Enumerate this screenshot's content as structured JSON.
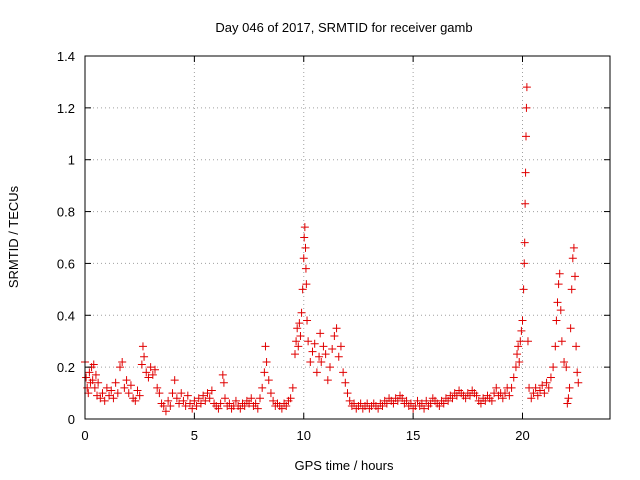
{
  "chart_data": {
    "type": "scatter",
    "title": "Day 046 of 2017, SRMTID for receiver gamb",
    "xlabel": "GPS time / hours",
    "ylabel": "SRMTID / TECUs",
    "xlim": [
      0,
      24
    ],
    "ylim": [
      0,
      1.4
    ],
    "xticks": [
      0,
      5,
      10,
      15,
      20
    ],
    "yticks": [
      0,
      0.2,
      0.4,
      0.6,
      0.8,
      1,
      1.2,
      1.4
    ],
    "xtick_labels": [
      "0",
      "5",
      "10",
      "15",
      "20"
    ],
    "ytick_labels": [
      "0",
      "0.2",
      "0.4",
      "0.6",
      "0.8",
      "1",
      "1.2",
      "1.4"
    ],
    "grid": true,
    "marker": "+",
    "marker_color": "#e00000",
    "series": [
      {
        "name": "SRMTID",
        "points": [
          [
            0.0,
            0.22
          ],
          [
            0.05,
            0.16
          ],
          [
            0.1,
            0.12
          ],
          [
            0.15,
            0.1
          ],
          [
            0.2,
            0.18
          ],
          [
            0.25,
            0.14
          ],
          [
            0.3,
            0.2
          ],
          [
            0.35,
            0.15
          ],
          [
            0.4,
            0.21
          ],
          [
            0.45,
            0.12
          ],
          [
            0.5,
            0.17
          ],
          [
            0.55,
            0.09
          ],
          [
            0.6,
            0.14
          ],
          [
            0.7,
            0.08
          ],
          [
            0.8,
            0.1
          ],
          [
            0.9,
            0.07
          ],
          [
            1.0,
            0.12
          ],
          [
            1.1,
            0.09
          ],
          [
            1.2,
            0.11
          ],
          [
            1.3,
            0.08
          ],
          [
            1.4,
            0.14
          ],
          [
            1.5,
            0.1
          ],
          [
            1.6,
            0.2
          ],
          [
            1.7,
            0.22
          ],
          [
            1.8,
            0.12
          ],
          [
            1.9,
            0.15
          ],
          [
            2.0,
            0.1
          ],
          [
            2.1,
            0.13
          ],
          [
            2.2,
            0.08
          ],
          [
            2.3,
            0.07
          ],
          [
            2.4,
            0.11
          ],
          [
            2.5,
            0.09
          ],
          [
            2.6,
            0.21
          ],
          [
            2.65,
            0.28
          ],
          [
            2.7,
            0.24
          ],
          [
            2.8,
            0.18
          ],
          [
            2.9,
            0.16
          ],
          [
            3.0,
            0.2
          ],
          [
            3.1,
            0.17
          ],
          [
            3.2,
            0.19
          ],
          [
            3.3,
            0.12
          ],
          [
            3.4,
            0.1
          ],
          [
            3.5,
            0.06
          ],
          [
            3.6,
            0.05
          ],
          [
            3.7,
            0.03
          ],
          [
            3.8,
            0.07
          ],
          [
            3.9,
            0.05
          ],
          [
            4.0,
            0.1
          ],
          [
            4.1,
            0.15
          ],
          [
            4.2,
            0.08
          ],
          [
            4.3,
            0.06
          ],
          [
            4.4,
            0.1
          ],
          [
            4.5,
            0.07
          ],
          [
            4.6,
            0.05
          ],
          [
            4.7,
            0.09
          ],
          [
            4.8,
            0.06
          ],
          [
            4.9,
            0.04
          ],
          [
            5.0,
            0.07
          ],
          [
            5.1,
            0.05
          ],
          [
            5.2,
            0.08
          ],
          [
            5.3,
            0.06
          ],
          [
            5.4,
            0.09
          ],
          [
            5.5,
            0.07
          ],
          [
            5.6,
            0.1
          ],
          [
            5.7,
            0.08
          ],
          [
            5.8,
            0.11
          ],
          [
            5.9,
            0.06
          ],
          [
            6.0,
            0.05
          ],
          [
            6.1,
            0.04
          ],
          [
            6.2,
            0.06
          ],
          [
            6.3,
            0.17
          ],
          [
            6.35,
            0.14
          ],
          [
            6.4,
            0.08
          ],
          [
            6.5,
            0.05
          ],
          [
            6.6,
            0.06
          ],
          [
            6.7,
            0.04
          ],
          [
            6.8,
            0.05
          ],
          [
            6.9,
            0.07
          ],
          [
            7.0,
            0.05
          ],
          [
            7.1,
            0.04
          ],
          [
            7.2,
            0.06
          ],
          [
            7.3,
            0.05
          ],
          [
            7.4,
            0.07
          ],
          [
            7.5,
            0.06
          ],
          [
            7.6,
            0.08
          ],
          [
            7.7,
            0.05
          ],
          [
            7.8,
            0.06
          ],
          [
            7.9,
            0.04
          ],
          [
            8.0,
            0.08
          ],
          [
            8.1,
            0.12
          ],
          [
            8.2,
            0.18
          ],
          [
            8.25,
            0.28
          ],
          [
            8.3,
            0.22
          ],
          [
            8.4,
            0.15
          ],
          [
            8.5,
            0.1
          ],
          [
            8.6,
            0.07
          ],
          [
            8.7,
            0.05
          ],
          [
            8.8,
            0.06
          ],
          [
            8.9,
            0.05
          ],
          [
            9.0,
            0.04
          ],
          [
            9.1,
            0.06
          ],
          [
            9.2,
            0.05
          ],
          [
            9.3,
            0.07
          ],
          [
            9.4,
            0.08
          ],
          [
            9.5,
            0.12
          ],
          [
            9.6,
            0.25
          ],
          [
            9.65,
            0.3
          ],
          [
            9.7,
            0.35
          ],
          [
            9.75,
            0.28
          ],
          [
            9.8,
            0.37
          ],
          [
            9.85,
            0.32
          ],
          [
            9.9,
            0.41
          ],
          [
            9.95,
            0.5
          ],
          [
            10.0,
            0.62
          ],
          [
            10.02,
            0.7
          ],
          [
            10.05,
            0.74
          ],
          [
            10.08,
            0.66
          ],
          [
            10.1,
            0.58
          ],
          [
            10.12,
            0.52
          ],
          [
            10.15,
            0.38
          ],
          [
            10.2,
            0.3
          ],
          [
            10.3,
            0.22
          ],
          [
            10.4,
            0.26
          ],
          [
            10.5,
            0.29
          ],
          [
            10.6,
            0.18
          ],
          [
            10.7,
            0.24
          ],
          [
            10.75,
            0.33
          ],
          [
            10.8,
            0.22
          ],
          [
            10.9,
            0.28
          ],
          [
            11.0,
            0.25
          ],
          [
            11.1,
            0.15
          ],
          [
            11.2,
            0.2
          ],
          [
            11.3,
            0.27
          ],
          [
            11.4,
            0.32
          ],
          [
            11.5,
            0.35
          ],
          [
            11.6,
            0.24
          ],
          [
            11.7,
            0.28
          ],
          [
            11.8,
            0.18
          ],
          [
            11.9,
            0.14
          ],
          [
            12.0,
            0.1
          ],
          [
            12.1,
            0.07
          ],
          [
            12.2,
            0.05
          ],
          [
            12.3,
            0.06
          ],
          [
            12.4,
            0.04
          ],
          [
            12.5,
            0.05
          ],
          [
            12.6,
            0.06
          ],
          [
            12.7,
            0.04
          ],
          [
            12.8,
            0.05
          ],
          [
            12.9,
            0.06
          ],
          [
            13.0,
            0.04
          ],
          [
            13.1,
            0.05
          ],
          [
            13.2,
            0.06
          ],
          [
            13.3,
            0.05
          ],
          [
            13.4,
            0.04
          ],
          [
            13.5,
            0.06
          ],
          [
            13.6,
            0.05
          ],
          [
            13.7,
            0.07
          ],
          [
            13.8,
            0.06
          ],
          [
            13.9,
            0.08
          ],
          [
            14.0,
            0.07
          ],
          [
            14.1,
            0.06
          ],
          [
            14.2,
            0.08
          ],
          [
            14.3,
            0.07
          ],
          [
            14.4,
            0.09
          ],
          [
            14.5,
            0.08
          ],
          [
            14.6,
            0.06
          ],
          [
            14.7,
            0.07
          ],
          [
            14.8,
            0.05
          ],
          [
            14.9,
            0.06
          ],
          [
            15.0,
            0.04
          ],
          [
            15.1,
            0.05
          ],
          [
            15.2,
            0.07
          ],
          [
            15.3,
            0.05
          ],
          [
            15.4,
            0.06
          ],
          [
            15.5,
            0.04
          ],
          [
            15.6,
            0.07
          ],
          [
            15.7,
            0.05
          ],
          [
            15.8,
            0.06
          ],
          [
            15.9,
            0.08
          ],
          [
            16.0,
            0.07
          ],
          [
            16.1,
            0.06
          ],
          [
            16.2,
            0.05
          ],
          [
            16.3,
            0.07
          ],
          [
            16.4,
            0.06
          ],
          [
            16.5,
            0.08
          ],
          [
            16.6,
            0.07
          ],
          [
            16.7,
            0.09
          ],
          [
            16.8,
            0.08
          ],
          [
            16.9,
            0.1
          ],
          [
            17.0,
            0.09
          ],
          [
            17.1,
            0.11
          ],
          [
            17.2,
            0.1
          ],
          [
            17.3,
            0.09
          ],
          [
            17.4,
            0.08
          ],
          [
            17.5,
            0.1
          ],
          [
            17.6,
            0.09
          ],
          [
            17.7,
            0.11
          ],
          [
            17.8,
            0.1
          ],
          [
            17.9,
            0.09
          ],
          [
            18.0,
            0.07
          ],
          [
            18.1,
            0.06
          ],
          [
            18.2,
            0.08
          ],
          [
            18.3,
            0.07
          ],
          [
            18.4,
            0.09
          ],
          [
            18.5,
            0.08
          ],
          [
            18.6,
            0.07
          ],
          [
            18.7,
            0.1
          ],
          [
            18.8,
            0.12
          ],
          [
            18.9,
            0.09
          ],
          [
            19.0,
            0.1
          ],
          [
            19.1,
            0.08
          ],
          [
            19.2,
            0.1
          ],
          [
            19.3,
            0.12
          ],
          [
            19.4,
            0.09
          ],
          [
            19.5,
            0.12
          ],
          [
            19.6,
            0.16
          ],
          [
            19.7,
            0.2
          ],
          [
            19.75,
            0.25
          ],
          [
            19.8,
            0.28
          ],
          [
            19.85,
            0.22
          ],
          [
            19.9,
            0.3
          ],
          [
            19.95,
            0.34
          ],
          [
            20.0,
            0.38
          ],
          [
            20.05,
            0.5
          ],
          [
            20.08,
            0.6
          ],
          [
            20.1,
            0.68
          ],
          [
            20.12,
            0.83
          ],
          [
            20.14,
            0.95
          ],
          [
            20.16,
            1.09
          ],
          [
            20.18,
            1.2
          ],
          [
            20.2,
            1.28
          ],
          [
            20.25,
            0.3
          ],
          [
            20.3,
            0.12
          ],
          [
            20.4,
            0.08
          ],
          [
            20.5,
            0.1
          ],
          [
            20.6,
            0.12
          ],
          [
            20.7,
            0.09
          ],
          [
            20.8,
            0.11
          ],
          [
            20.9,
            0.13
          ],
          [
            21.0,
            0.1
          ],
          [
            21.1,
            0.14
          ],
          [
            21.2,
            0.12
          ],
          [
            21.3,
            0.16
          ],
          [
            21.4,
            0.2
          ],
          [
            21.5,
            0.28
          ],
          [
            21.55,
            0.38
          ],
          [
            21.6,
            0.45
          ],
          [
            21.65,
            0.52
          ],
          [
            21.7,
            0.56
          ],
          [
            21.75,
            0.42
          ],
          [
            21.8,
            0.3
          ],
          [
            21.9,
            0.22
          ],
          [
            22.0,
            0.2
          ],
          [
            22.05,
            0.06
          ],
          [
            22.1,
            0.08
          ],
          [
            22.15,
            0.12
          ],
          [
            22.2,
            0.35
          ],
          [
            22.25,
            0.5
          ],
          [
            22.3,
            0.62
          ],
          [
            22.35,
            0.66
          ],
          [
            22.4,
            0.55
          ],
          [
            22.45,
            0.28
          ],
          [
            22.5,
            0.18
          ],
          [
            22.55,
            0.14
          ]
        ]
      }
    ]
  }
}
